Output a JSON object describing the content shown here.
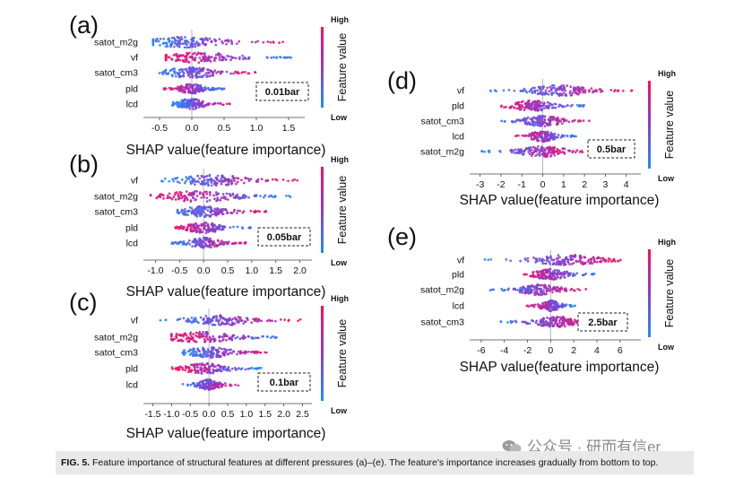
{
  "chart_data": [
    {
      "type": "scatter",
      "panel_label": "(a)",
      "pressure_label": "0.01bar",
      "xlabel": "SHAP value(feature importance)",
      "features": [
        "satot_m2g",
        "vf",
        "satot_cm3",
        "pld",
        "lcd"
      ],
      "xlim": [
        -0.75,
        1.75
      ],
      "xticks": [
        -0.5,
        0.0,
        0.5,
        1.0,
        1.5
      ],
      "tick_labels": [
        "-0.5",
        "0.0",
        "0.5",
        "1.0",
        "1.5"
      ],
      "colorbar": {
        "title": "Feature value",
        "high": "High",
        "low": "Low"
      },
      "spread": [
        {
          "feature": "satot_m2g",
          "min": -0.6,
          "max": 1.45,
          "center": -0.1
        },
        {
          "feature": "vf",
          "min": -0.4,
          "max": 1.55,
          "center": 0.1
        },
        {
          "feature": "satot_cm3",
          "min": -0.55,
          "max": 1.1,
          "center": 0.0
        },
        {
          "feature": "pld",
          "min": -0.45,
          "max": 0.5,
          "center": 0.0
        },
        {
          "feature": "lcd",
          "min": -0.3,
          "max": 0.6,
          "center": 0.0
        }
      ]
    },
    {
      "type": "scatter",
      "panel_label": "(b)",
      "pressure_label": "0.05bar",
      "xlabel": "SHAP value(feature importance)",
      "features": [
        "vf",
        "satot_m2g",
        "satot_cm3",
        "pld",
        "lcd"
      ],
      "xlim": [
        -1.25,
        2.25
      ],
      "xticks": [
        -1.0,
        -0.5,
        0.0,
        0.5,
        1.0,
        1.5,
        2.0
      ],
      "tick_labels": [
        "-1.0",
        "-0.5",
        "0.0",
        "0.5",
        "1.0",
        "1.5",
        "2.0"
      ],
      "colorbar": {
        "title": "Feature value",
        "high": "High",
        "low": "Low"
      },
      "spread": [
        {
          "feature": "vf",
          "min": -0.9,
          "max": 2.0,
          "center": 0.2
        },
        {
          "feature": "satot_m2g",
          "min": -1.1,
          "max": 1.9,
          "center": -0.1
        },
        {
          "feature": "satot_cm3",
          "min": -0.6,
          "max": 1.3,
          "center": 0.0
        },
        {
          "feature": "pld",
          "min": -0.6,
          "max": 1.0,
          "center": 0.0
        },
        {
          "feature": "lcd",
          "min": -0.7,
          "max": 0.9,
          "center": 0.0
        }
      ]
    },
    {
      "type": "scatter",
      "panel_label": "(c)",
      "pressure_label": "0.1bar",
      "xlabel": "SHAP value(feature importance)",
      "features": [
        "vf",
        "satot_m2g",
        "satot_cm3",
        "pld",
        "lcd"
      ],
      "xlim": [
        -1.75,
        2.75
      ],
      "xticks": [
        -1.5,
        -1.0,
        -0.5,
        0.0,
        0.5,
        1.0,
        1.5,
        2.0,
        2.5
      ],
      "tick_labels": [
        "-1.5",
        "-1.0",
        "-0.5",
        "0.0",
        "0.5",
        "1.0",
        "1.5",
        "2.0",
        "2.5"
      ],
      "colorbar": {
        "title": "Feature value",
        "high": "High",
        "low": "Low"
      },
      "spread": [
        {
          "feature": "vf",
          "min": -1.3,
          "max": 2.5,
          "center": 0.3
        },
        {
          "feature": "satot_m2g",
          "min": -1.0,
          "max": 2.2,
          "center": -0.2
        },
        {
          "feature": "satot_cm3",
          "min": -0.7,
          "max": 1.6,
          "center": 0.0
        },
        {
          "feature": "pld",
          "min": -1.0,
          "max": 1.4,
          "center": -0.1
        },
        {
          "feature": "lcd",
          "min": -0.7,
          "max": 0.8,
          "center": 0.0
        }
      ]
    },
    {
      "type": "scatter",
      "panel_label": "(d)",
      "pressure_label": "0.5bar",
      "xlabel": "SHAP value(feature importance)",
      "features": [
        "vf",
        "pld",
        "satot_cm3",
        "lcd",
        "satot_m2g"
      ],
      "xlim": [
        -3.5,
        4.7
      ],
      "xticks": [
        -3,
        -2,
        -1,
        0,
        1,
        2,
        3,
        4
      ],
      "tick_labels": [
        "-3",
        "-2",
        "-1",
        "0",
        "1",
        "2",
        "3",
        "4"
      ],
      "colorbar": {
        "title": "Feature value",
        "high": "High",
        "low": "Low"
      },
      "spread": [
        {
          "feature": "vf",
          "min": -2.5,
          "max": 4.3,
          "center": 0.8
        },
        {
          "feature": "pld",
          "min": -2.0,
          "max": 2.1,
          "center": -0.5
        },
        {
          "feature": "satot_cm3",
          "min": -2.4,
          "max": 2.3,
          "center": 0.0
        },
        {
          "feature": "lcd",
          "min": -1.3,
          "max": 1.6,
          "center": 0.0
        },
        {
          "feature": "satot_m2g",
          "min": -3.0,
          "max": 1.9,
          "center": 0.0
        }
      ]
    },
    {
      "type": "scatter",
      "panel_label": "(e)",
      "pressure_label": "2.5bar",
      "xlabel": "SHAP value(feature importance)",
      "features": [
        "vf",
        "pld",
        "satot_m2g",
        "lcd",
        "satot_cm3"
      ],
      "xlim": [
        -7.0,
        7.8
      ],
      "xticks": [
        -6,
        -4,
        -2,
        0,
        2,
        4,
        6
      ],
      "tick_labels": [
        "-6",
        "-4",
        "-2",
        "0",
        "2",
        "4",
        "6"
      ],
      "colorbar": {
        "title": "Feature value",
        "high": "High",
        "low": "Low"
      },
      "spread": [
        {
          "feature": "vf",
          "min": -5.8,
          "max": 6.7,
          "center": 1.5
        },
        {
          "feature": "pld",
          "min": -2.4,
          "max": 3.8,
          "center": 0.0
        },
        {
          "feature": "satot_m2g",
          "min": -5.6,
          "max": 3.1,
          "center": -1.0
        },
        {
          "feature": "lcd",
          "min": -2.2,
          "max": 2.2,
          "center": 0.0
        },
        {
          "feature": "satot_cm3",
          "min": -4.6,
          "max": 3.4,
          "center": 0.5
        }
      ]
    }
  ],
  "caption": {
    "label": "FIG. 5.",
    "text": "Feature importance of structural features at different pressures (a)–(e). The feature's importance increases gradually from bottom to top."
  },
  "watermark": "公众号 · 研而有信er",
  "colors": {
    "high": "#ff0a5a",
    "low": "#1e8cff"
  }
}
